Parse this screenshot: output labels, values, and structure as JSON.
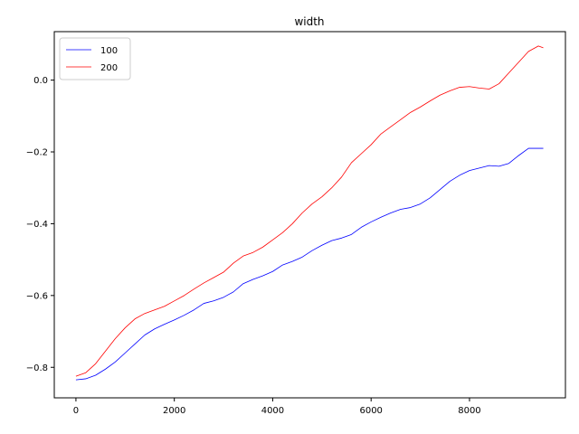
{
  "chart_data": {
    "type": "line",
    "title": "width",
    "xlabel": "",
    "ylabel": "",
    "xlim": [
      -440,
      9950
    ],
    "ylim": [
      -0.885,
      0.135
    ],
    "xticks": [
      0,
      2000,
      4000,
      6000,
      8000
    ],
    "yticks": [
      -0.8,
      -0.6,
      -0.4,
      -0.2,
      0.0
    ],
    "xtick_labels": [
      "0",
      "2000",
      "4000",
      "6000",
      "8000"
    ],
    "ytick_labels": [
      "−0.8",
      "−0.6",
      "−0.4",
      "−0.2",
      "0.0"
    ],
    "grid": false,
    "legend_position": "top-left",
    "series": [
      {
        "name": "100",
        "color": "#0000ff",
        "x": [
          0,
          200,
          400,
          600,
          800,
          1000,
          1200,
          1400,
          1600,
          1800,
          2000,
          2200,
          2400,
          2600,
          2800,
          3000,
          3200,
          3400,
          3600,
          3800,
          4000,
          4200,
          4400,
          4600,
          4800,
          5000,
          5200,
          5400,
          5600,
          5800,
          6000,
          6200,
          6400,
          6600,
          6800,
          7000,
          7200,
          7400,
          7600,
          7800,
          8000,
          8200,
          8400,
          8600,
          8800,
          9000,
          9200,
          9400,
          9500
        ],
        "y": [
          -0.835,
          -0.832,
          -0.822,
          -0.805,
          -0.785,
          -0.76,
          -0.735,
          -0.71,
          -0.693,
          -0.68,
          -0.668,
          -0.655,
          -0.64,
          -0.622,
          -0.615,
          -0.605,
          -0.59,
          -0.567,
          -0.555,
          -0.545,
          -0.533,
          -0.515,
          -0.505,
          -0.493,
          -0.475,
          -0.46,
          -0.447,
          -0.44,
          -0.43,
          -0.41,
          -0.395,
          -0.382,
          -0.37,
          -0.36,
          -0.355,
          -0.345,
          -0.328,
          -0.305,
          -0.282,
          -0.265,
          -0.252,
          -0.245,
          -0.238,
          -0.24,
          -0.232,
          -0.21,
          -0.19,
          -0.19,
          -0.19
        ]
      },
      {
        "name": "200",
        "color": "#ff0000",
        "x": [
          0,
          200,
          400,
          600,
          800,
          1000,
          1200,
          1400,
          1600,
          1800,
          2000,
          2200,
          2400,
          2600,
          2800,
          3000,
          3200,
          3400,
          3600,
          3800,
          4000,
          4200,
          4400,
          4600,
          4800,
          5000,
          5200,
          5400,
          5600,
          5800,
          6000,
          6200,
          6400,
          6600,
          6800,
          7000,
          7200,
          7400,
          7600,
          7800,
          8000,
          8200,
          8400,
          8600,
          8800,
          9000,
          9200,
          9400,
          9500
        ],
        "y": [
          -0.825,
          -0.815,
          -0.79,
          -0.755,
          -0.72,
          -0.69,
          -0.665,
          -0.65,
          -0.64,
          -0.63,
          -0.615,
          -0.6,
          -0.582,
          -0.565,
          -0.55,
          -0.535,
          -0.51,
          -0.49,
          -0.48,
          -0.465,
          -0.445,
          -0.425,
          -0.4,
          -0.37,
          -0.345,
          -0.325,
          -0.3,
          -0.27,
          -0.23,
          -0.205,
          -0.18,
          -0.15,
          -0.13,
          -0.11,
          -0.09,
          -0.075,
          -0.058,
          -0.042,
          -0.03,
          -0.02,
          -0.018,
          -0.022,
          -0.025,
          -0.01,
          0.02,
          0.05,
          0.08,
          0.095,
          0.09
        ]
      }
    ]
  }
}
